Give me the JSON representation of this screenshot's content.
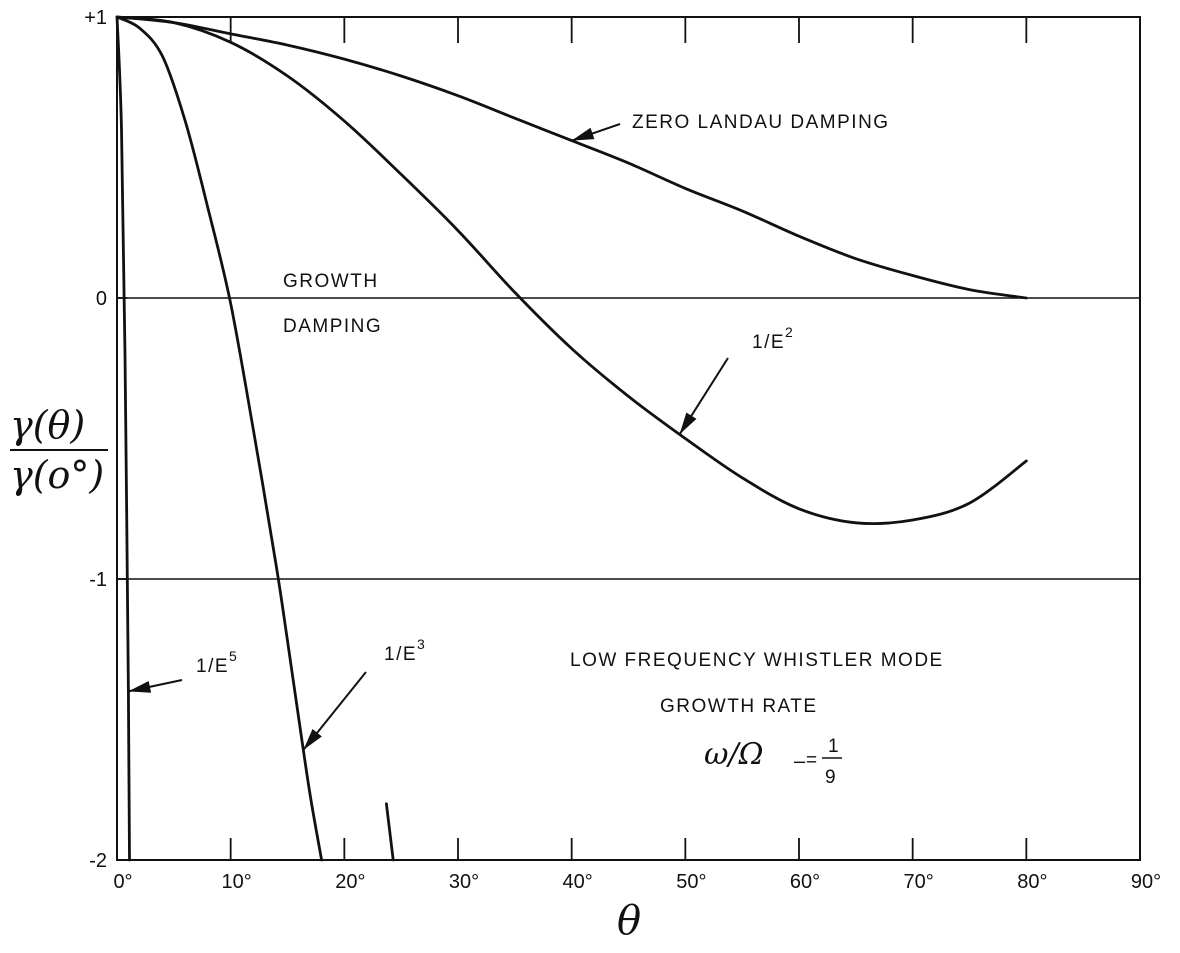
{
  "chart_data": {
    "type": "line",
    "xlabel": "θ",
    "ylabel": {
      "numerator": "γ(θ)",
      "denominator": "γ(o°)"
    },
    "xlim": [
      0,
      90
    ],
    "ylim": [
      -2,
      1
    ],
    "x_ticks": [
      "0°",
      "10°",
      "20°",
      "30°",
      "40°",
      "50°",
      "60°",
      "70°",
      "80°",
      "90°"
    ],
    "y_ticks": [
      "+1",
      "0",
      "-1",
      "-2"
    ],
    "reference_lines": [
      0,
      -1
    ],
    "region_labels": {
      "above": "GROWTH",
      "below": "DAMPING"
    },
    "annotation": {
      "line1": "LOW FREQUENCY WHISTLER MODE",
      "line2": "GROWTH RATE",
      "formula_lhs": "ω/Ω",
      "formula_sub": "−",
      "formula_eq": "=",
      "formula_num": "1",
      "formula_den": "9"
    },
    "series": [
      {
        "name": "ZERO LANDAU DAMPING",
        "label_parts": [
          "ZERO LANDAU DAMPING"
        ],
        "x": [
          0,
          5,
          10,
          15,
          20,
          25,
          30,
          35,
          40,
          45,
          50,
          55,
          60,
          65,
          70,
          75,
          80
        ],
        "y": [
          1.0,
          0.98,
          0.94,
          0.9,
          0.85,
          0.79,
          0.72,
          0.64,
          0.56,
          0.48,
          0.39,
          0.31,
          0.22,
          0.14,
          0.08,
          0.03,
          0.0
        ]
      },
      {
        "name": "1/E2",
        "label_parts": [
          "1/E",
          "2"
        ],
        "x": [
          0,
          5,
          10,
          15,
          20,
          25,
          30,
          35,
          40,
          45,
          50,
          55,
          60,
          65,
          70,
          75,
          80
        ],
        "y": [
          1.0,
          0.98,
          0.91,
          0.79,
          0.63,
          0.44,
          0.24,
          0.02,
          -0.18,
          -0.35,
          -0.5,
          -0.64,
          -0.75,
          -0.8,
          -0.79,
          -0.73,
          -0.58
        ]
      },
      {
        "name": "1/E3",
        "label_parts": [
          "1/E",
          "3"
        ],
        "x": [
          0,
          2,
          4,
          6,
          8,
          10,
          12,
          14,
          15,
          16,
          17,
          18
        ],
        "y": [
          1.0,
          0.96,
          0.86,
          0.63,
          0.32,
          -0.02,
          -0.47,
          -0.95,
          -1.22,
          -1.5,
          -1.77,
          -2.0
        ]
      },
      {
        "name": "1/E5",
        "label_parts": [
          "1/E",
          "5"
        ],
        "x": [
          0,
          0.4,
          0.7,
          1.0,
          1.1
        ],
        "y": [
          1.0,
          0.6,
          -0.2,
          -1.4,
          -2.0
        ]
      }
    ],
    "extra_segment": {
      "x": [
        23.7,
        24.3
      ],
      "y": [
        -1.8,
        -2.0
      ]
    },
    "pointers": [
      {
        "series": "ZERO LANDAU DAMPING",
        "at_x": 40
      },
      {
        "series": "1/E2",
        "at_x": 49.5
      },
      {
        "series": "1/E3",
        "at_x": 16.4
      },
      {
        "series": "1/E5",
        "at_x": 1.0
      }
    ]
  }
}
